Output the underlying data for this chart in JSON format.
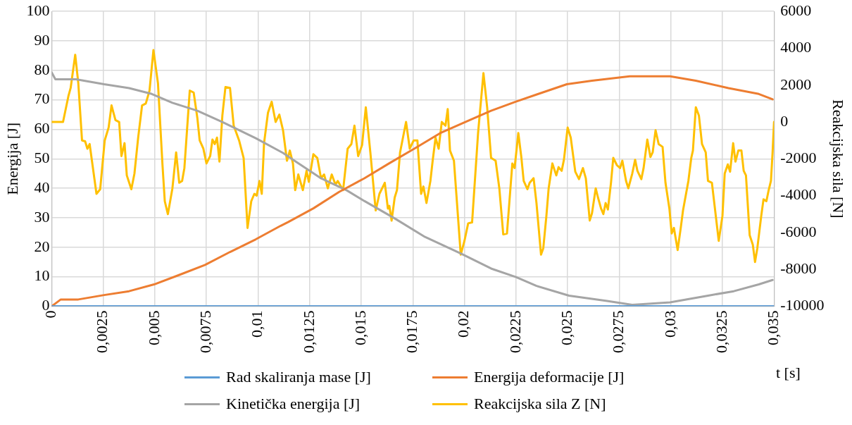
{
  "chart_data": {
    "type": "line",
    "xlabel": "t [s]",
    "ylabel": "Energija [J]",
    "y2label": "Reakcijska sila [N]",
    "xlim": [
      0,
      0.035
    ],
    "xticks": [
      0,
      {
        "value": 0.0025,
        "label": "0,0025"
      },
      {
        "value": 0.005,
        "label": "0,005"
      },
      {
        "value": 0.0075,
        "label": "0,0075"
      },
      {
        "value": 0.01,
        "label": "0,01"
      },
      {
        "value": 0.0125,
        "label": "0,0125"
      },
      {
        "value": 0.015,
        "label": "0,015"
      },
      {
        "value": 0.0175,
        "label": "0,0175"
      },
      {
        "value": 0.02,
        "label": "0,02"
      },
      {
        "value": 0.0225,
        "label": "0,0225"
      },
      {
        "value": 0.025,
        "label": "0,025"
      },
      {
        "value": 0.0275,
        "label": "0,0275"
      },
      {
        "value": 0.03,
        "label": "0,03"
      },
      {
        "value": 0.0325,
        "label": "0,0325"
      },
      {
        "value": 0.035,
        "label": "0,035"
      }
    ],
    "ylim": [
      0,
      100
    ],
    "yticks": [
      0,
      10,
      20,
      30,
      40,
      50,
      60,
      70,
      80,
      90,
      100
    ],
    "y2lim": [
      -10000,
      6000
    ],
    "y2ticks": [
      -10000,
      -8000,
      -6000,
      -4000,
      -2000,
      0,
      2000,
      4000,
      6000
    ],
    "grid": true,
    "legend": "bottom",
    "marker": "none",
    "line_style": "solid",
    "series": [
      {
        "name": "Rad skaliranja mase [J]",
        "color": "#5b9bd5",
        "x": [
          0,
          0.035
        ],
        "values": [
          0,
          0
        ]
      },
      {
        "name": "Energija deformacije [J]",
        "color": "#ed7d31",
        "x": [
          0,
          0.00044,
          0.00129,
          0.00254,
          0.00375,
          0.00496,
          0.00621,
          0.00743,
          0.00864,
          0.00989,
          0.0111,
          0.01147,
          0.01268,
          0.01393,
          0.01515,
          0.01636,
          0.01761,
          0.01882,
          0.02004,
          0.02129,
          0.0225,
          0.02353,
          0.02496,
          0.02618,
          0.02801,
          0.02996,
          0.03121,
          0.03279,
          0.03426,
          0.03493
        ],
        "values": [
          0,
          2.3,
          2.3,
          3.8,
          5.1,
          7.4,
          10.7,
          14,
          18.4,
          22.7,
          27.3,
          28.6,
          33.2,
          38.8,
          43.4,
          48.5,
          53.6,
          58.7,
          62.5,
          66.3,
          69.4,
          71.9,
          75.3,
          76.5,
          78,
          78,
          76.5,
          74,
          72,
          70.2
        ]
      },
      {
        "name": "Kinetička energija [J]",
        "color": "#a5a5a5",
        "x": [
          0,
          0.00018,
          0.00118,
          0.00254,
          0.00375,
          0.00485,
          0.00585,
          0.00706,
          0.00827,
          0.00989,
          0.01121,
          0.01184,
          0.01305,
          0.0143,
          0.01515,
          0.01662,
          0.01809,
          0.01982,
          0.02129,
          0.0225,
          0.02349,
          0.02507,
          0.02691,
          0.02813,
          0.02996,
          0.0318,
          0.03305,
          0.03426,
          0.03493
        ],
        "values": [
          79.3,
          77,
          77,
          75.3,
          74,
          72,
          69,
          66.3,
          62.5,
          57,
          52,
          49,
          43.4,
          39.3,
          35.7,
          29.8,
          23.5,
          17.9,
          12.8,
          9.9,
          6.9,
          3.6,
          1.8,
          0.5,
          1.3,
          3.6,
          5.1,
          7.4,
          8.9
        ]
      },
      {
        "name": "Reakcijska sila Z [N]",
        "color": "#ffc000",
        "axis": "y2",
        "x": [
          0,
          0.00055,
          0.00081,
          0.00092,
          0.00114,
          0.00129,
          0.00147,
          0.00162,
          0.00173,
          0.00184,
          0.00217,
          0.00235,
          0.00257,
          0.00276,
          0.0029,
          0.00309,
          0.00327,
          0.00338,
          0.00353,
          0.00364,
          0.00386,
          0.00401,
          0.00419,
          0.00438,
          0.00456,
          0.00474,
          0.00493,
          0.00515,
          0.00537,
          0.00548,
          0.00563,
          0.00585,
          0.00603,
          0.00618,
          0.00632,
          0.00643,
          0.00669,
          0.00688,
          0.00706,
          0.00717,
          0.00735,
          0.0075,
          0.00768,
          0.00779,
          0.0079,
          0.00801,
          0.00813,
          0.00827,
          0.00842,
          0.00864,
          0.00882,
          0.00908,
          0.0093,
          0.00949,
          0.00967,
          0.00982,
          0.00993,
          0.01007,
          0.01018,
          0.01029,
          0.01048,
          0.01066,
          0.01085,
          0.01103,
          0.01121,
          0.0114,
          0.01154,
          0.01169,
          0.0118,
          0.01195,
          0.01217,
          0.01235,
          0.01246,
          0.01268,
          0.01287,
          0.01305,
          0.0132,
          0.01338,
          0.01357,
          0.01375,
          0.01386,
          0.01412,
          0.01434,
          0.01452,
          0.01467,
          0.01485,
          0.01504,
          0.01522,
          0.01544,
          0.0157,
          0.01588,
          0.01614,
          0.01629,
          0.01636,
          0.01647,
          0.01662,
          0.01673,
          0.01688,
          0.01717,
          0.01735,
          0.01754,
          0.01772,
          0.0179,
          0.01801,
          0.01816,
          0.01835,
          0.01846,
          0.0186,
          0.01875,
          0.0189,
          0.01908,
          0.01919,
          0.0193,
          0.01949,
          0.01982,
          0.02,
          0.02018,
          0.02037,
          0.02066,
          0.02092,
          0.0211,
          0.02129,
          0.02151,
          0.02169,
          0.02188,
          0.02206,
          0.02232,
          0.02243,
          0.02261,
          0.02276,
          0.02287,
          0.02305,
          0.02316,
          0.02335,
          0.02349,
          0.02371,
          0.02382,
          0.02397,
          0.02408,
          0.02426,
          0.02445,
          0.02456,
          0.02471,
          0.02482,
          0.025,
          0.02515,
          0.02537,
          0.02555,
          0.02574,
          0.02588,
          0.02607,
          0.02618,
          0.02636,
          0.02647,
          0.02662,
          0.02673,
          0.02684,
          0.02695,
          0.0271,
          0.02721,
          0.02739,
          0.02754,
          0.02765,
          0.02783,
          0.02794,
          0.02813,
          0.02827,
          0.02838,
          0.02857,
          0.02868,
          0.02886,
          0.02901,
          0.02912,
          0.02926,
          0.02941,
          0.0296,
          0.02974,
          0.02993,
          0.03004,
          0.03015,
          0.03033,
          0.03048,
          0.03059,
          0.03085,
          0.03099,
          0.03107,
          0.03121,
          0.03136,
          0.03151,
          0.03169,
          0.0318,
          0.03199,
          0.03232,
          0.0325,
          0.03261,
          0.03276,
          0.03287,
          0.03302,
          0.03313,
          0.03327,
          0.03342,
          0.03353,
          0.03364,
          0.03382,
          0.03397,
          0.03408,
          0.03419,
          0.03438,
          0.03449,
          0.03463,
          0.03474,
          0.03485,
          0.03493,
          0.035
        ],
        "values": [
          0,
          0,
          1400,
          1850,
          3650,
          2100,
          -1000,
          -1050,
          -1450,
          -1200,
          -3900,
          -3650,
          -1000,
          -300,
          900,
          100,
          0,
          -1850,
          -1150,
          -2900,
          -3650,
          -2800,
          -850,
          900,
          1000,
          1700,
          3900,
          2100,
          -2350,
          -4300,
          -5000,
          -3600,
          -1650,
          -3300,
          -3200,
          -2500,
          1700,
          1600,
          200,
          -1000,
          -1450,
          -2250,
          -1850,
          -950,
          -1200,
          -850,
          -2150,
          350,
          1900,
          1850,
          -200,
          -1000,
          -1950,
          -5750,
          -4300,
          -3900,
          -4000,
          -3200,
          -3900,
          -1150,
          500,
          1100,
          0,
          400,
          -450,
          -2100,
          -1550,
          -2250,
          -3700,
          -2850,
          -3700,
          -2650,
          -3250,
          -1750,
          -1950,
          -3050,
          -2850,
          -3600,
          -2850,
          -3400,
          -3200,
          -3700,
          -1450,
          -1200,
          -200,
          -1850,
          -1250,
          800,
          -1650,
          -4800,
          -3900,
          -3300,
          -4700,
          -4550,
          -5350,
          -4100,
          -3700,
          -1650,
          0,
          -1450,
          -1000,
          -1000,
          -3900,
          -3500,
          -4400,
          -3200,
          -2100,
          -850,
          -1450,
          0,
          -200,
          700,
          -1550,
          -2100,
          -7200,
          -6450,
          -5500,
          -5450,
          -600,
          2650,
          800,
          -1950,
          -2100,
          -3600,
          -6100,
          -6050,
          -2250,
          -2500,
          -600,
          -1950,
          -3200,
          -3650,
          -3300,
          -3050,
          -4400,
          -7200,
          -6850,
          -5100,
          -3600,
          -2250,
          -2900,
          -2450,
          -2650,
          -2050,
          -300,
          -850,
          -2700,
          -3100,
          -2500,
          -3050,
          -5350,
          -4950,
          -3600,
          -4100,
          -4700,
          -5000,
          -4400,
          -4750,
          -3300,
          -1950,
          -2350,
          -2500,
          -2100,
          -3200,
          -3600,
          -2800,
          -2050,
          -2650,
          -3100,
          -2500,
          -950,
          -1900,
          -1650,
          -450,
          -1200,
          -1350,
          -3300,
          -4700,
          -6050,
          -5750,
          -6950,
          -5750,
          -4800,
          -3200,
          -1950,
          -1550,
          800,
          350,
          -1200,
          -1650,
          -3200,
          -3300,
          -6450,
          -5100,
          -2800,
          -2300,
          -2700,
          -1150,
          -2150,
          -1550,
          -1550,
          -2650,
          -2900,
          -6150,
          -6650,
          -7600,
          -6850,
          -5100,
          -4200,
          -4300,
          -3700,
          -3200,
          -1650,
          0
        ]
      }
    ]
  }
}
